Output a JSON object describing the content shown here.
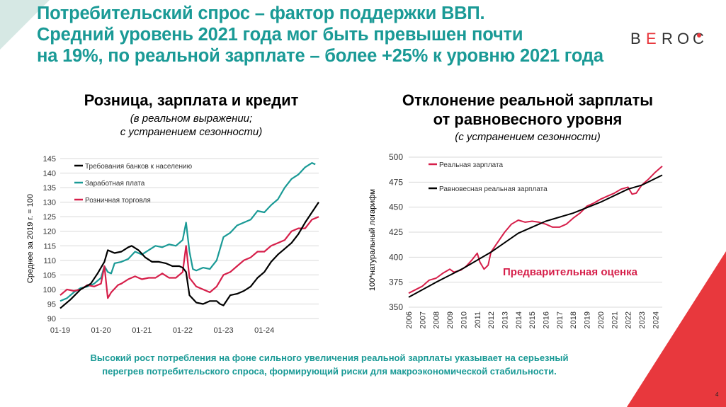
{
  "header": {
    "title_lines": [
      "Потребительский спрос – фактор поддержки ВВП.",
      "Средний уровень 2021 года мог быть превышен почти",
      "на 19%, по реальной зарплате – более +25% к уровню 2021 года"
    ],
    "logo": {
      "letters": [
        "B",
        "E",
        "R",
        "O",
        "C"
      ]
    }
  },
  "colors": {
    "teal": "#1a9a96",
    "red": "#d61f4a",
    "black": "#000000",
    "accent": "#e8383d"
  },
  "chart_left": {
    "title": "Розница, зарплата и кредит",
    "subtitle_lines": [
      "(в реальном выражении;",
      "с устранением сезонности)"
    ],
    "ylabel": "Среднее за 2019 г. = 100",
    "y_ticks": [
      90,
      95,
      100,
      105,
      110,
      115,
      120,
      125,
      130,
      135,
      140,
      145
    ],
    "x_tick_labels": [
      "01-19",
      "01-20",
      "01-21",
      "01-22",
      "01-23",
      "01-24"
    ]
  },
  "chart_right": {
    "title_lines": [
      "Отклонение реальной зарплаты",
      "от равновесного уровня"
    ],
    "subtitle": "(с устранением сезонности)",
    "ylabel": "100*натуральный логарифм",
    "y_ticks": [
      350,
      375,
      400,
      425,
      450,
      475,
      500
    ],
    "x_tick_labels": [
      "2006",
      "2007",
      "2008",
      "2009",
      "2010",
      "2011",
      "2012",
      "2013",
      "2014",
      "2015",
      "2016",
      "2017",
      "2018",
      "2019",
      "2020",
      "2021",
      "2022",
      "2023",
      "2024"
    ],
    "annotation": "Предварительная оценка"
  },
  "chart_data": [
    {
      "type": "line",
      "x_unit": "months since 01-19",
      "ylim": [
        90,
        145
      ],
      "legend_position": "top-left",
      "series": [
        {
          "name": "Требования банков к населению",
          "color": "#000000",
          "points": [
            [
              0,
              93.5
            ],
            [
              3,
              96.5
            ],
            [
              6,
              100
            ],
            [
              9,
              102
            ],
            [
              11,
              105.5
            ],
            [
              13,
              109.5
            ],
            [
              14,
              113.5
            ],
            [
              15,
              113
            ],
            [
              16,
              112.5
            ],
            [
              18,
              113
            ],
            [
              20,
              114.5
            ],
            [
              21,
              115
            ],
            [
              23,
              113.5
            ],
            [
              25,
              111
            ],
            [
              27,
              109.5
            ],
            [
              29,
              109.5
            ],
            [
              31,
              109
            ],
            [
              33,
              108
            ],
            [
              35,
              108
            ],
            [
              36,
              107.5
            ],
            [
              37,
              106
            ],
            [
              38,
              98
            ],
            [
              40,
              95.5
            ],
            [
              42,
              95
            ],
            [
              44,
              96
            ],
            [
              46,
              96
            ],
            [
              47,
              95
            ],
            [
              48,
              94.5
            ],
            [
              50,
              98
            ],
            [
              52,
              98.5
            ],
            [
              54,
              99.5
            ],
            [
              56,
              101
            ],
            [
              58,
              104
            ],
            [
              60,
              106
            ],
            [
              62,
              109.5
            ],
            [
              64,
              112
            ],
            [
              66,
              114
            ],
            [
              68,
              116
            ],
            [
              70,
              119
            ],
            [
              72,
              123
            ],
            [
              74,
              126.5
            ],
            [
              76,
              130
            ]
          ]
        },
        {
          "name": "Заработная плата",
          "color": "#1a9a96",
          "points": [
            [
              0,
              96
            ],
            [
              2,
              97
            ],
            [
              4,
              99
            ],
            [
              6,
              100.5
            ],
            [
              8,
              101
            ],
            [
              10,
              102
            ],
            [
              12,
              104
            ],
            [
              13,
              108
            ],
            [
              14,
              106
            ],
            [
              15,
              105.5
            ],
            [
              16,
              109
            ],
            [
              18,
              109.5
            ],
            [
              20,
              110.5
            ],
            [
              22,
              113
            ],
            [
              24,
              112
            ],
            [
              26,
              113.5
            ],
            [
              28,
              115
            ],
            [
              30,
              114.5
            ],
            [
              32,
              115.5
            ],
            [
              34,
              115
            ],
            [
              36,
              117
            ],
            [
              37,
              123
            ],
            [
              38,
              113
            ],
            [
              39,
              107
            ],
            [
              40,
              106.5
            ],
            [
              42,
              107.5
            ],
            [
              44,
              107
            ],
            [
              46,
              110
            ],
            [
              48,
              118
            ],
            [
              50,
              119.5
            ],
            [
              52,
              122
            ],
            [
              54,
              123
            ],
            [
              56,
              124
            ],
            [
              58,
              127
            ],
            [
              60,
              126.5
            ],
            [
              62,
              129
            ],
            [
              64,
              131
            ],
            [
              66,
              135
            ],
            [
              68,
              138
            ],
            [
              70,
              139.5
            ],
            [
              72,
              142
            ],
            [
              74,
              143.5
            ],
            [
              75,
              143
            ]
          ]
        },
        {
          "name": "Розничная торговля",
          "color": "#d61f4a",
          "points": [
            [
              0,
              98
            ],
            [
              2,
              100
            ],
            [
              4,
              99.5
            ],
            [
              6,
              100
            ],
            [
              8,
              101.5
            ],
            [
              10,
              101
            ],
            [
              12,
              102
            ],
            [
              13,
              108
            ],
            [
              14,
              97
            ],
            [
              15,
              99
            ],
            [
              17,
              101.5
            ],
            [
              18,
              102
            ],
            [
              20,
              103.5
            ],
            [
              22,
              104.5
            ],
            [
              24,
              103.5
            ],
            [
              26,
              104
            ],
            [
              28,
              104
            ],
            [
              30,
              105.5
            ],
            [
              32,
              104
            ],
            [
              34,
              104
            ],
            [
              36,
              106
            ],
            [
              37,
              115
            ],
            [
              38,
              104
            ],
            [
              40,
              101
            ],
            [
              42,
              100
            ],
            [
              44,
              99
            ],
            [
              46,
              101
            ],
            [
              48,
              105
            ],
            [
              50,
              106
            ],
            [
              52,
              108
            ],
            [
              54,
              110
            ],
            [
              56,
              111
            ],
            [
              58,
              113
            ],
            [
              60,
              113
            ],
            [
              62,
              115
            ],
            [
              64,
              116
            ],
            [
              66,
              117
            ],
            [
              68,
              120
            ],
            [
              70,
              121
            ],
            [
              72,
              121
            ],
            [
              74,
              124
            ],
            [
              76,
              125
            ]
          ]
        }
      ]
    },
    {
      "type": "line",
      "ylim": [
        350,
        500
      ],
      "legend_position": "top-left",
      "series": [
        {
          "name": "Реальная зарплата",
          "color": "#d61f4a",
          "points": [
            [
              2006,
              364
            ],
            [
              2007,
              371
            ],
            [
              2007.5,
              377
            ],
            [
              2008,
              379
            ],
            [
              2008.5,
              384
            ],
            [
              2009,
              388
            ],
            [
              2009.3,
              385
            ],
            [
              2009.8,
              387
            ],
            [
              2010.2,
              391
            ],
            [
              2010.6,
              397
            ],
            [
              2011,
              404
            ],
            [
              2011.2,
              395
            ],
            [
              2011.5,
              388
            ],
            [
              2011.8,
              392
            ],
            [
              2012,
              405
            ],
            [
              2012.5,
              415
            ],
            [
              2013,
              425
            ],
            [
              2013.5,
              433
            ],
            [
              2014,
              437
            ],
            [
              2014.5,
              435
            ],
            [
              2015,
              436
            ],
            [
              2015.5,
              435
            ],
            [
              2016,
              433
            ],
            [
              2016.5,
              430
            ],
            [
              2017,
              430
            ],
            [
              2017.5,
              433
            ],
            [
              2018,
              439
            ],
            [
              2018.5,
              444
            ],
            [
              2019,
              451
            ],
            [
              2019.5,
              454
            ],
            [
              2020,
              458
            ],
            [
              2020.5,
              461
            ],
            [
              2021,
              464
            ],
            [
              2021.5,
              468
            ],
            [
              2022,
              470
            ],
            [
              2022.3,
              463
            ],
            [
              2022.6,
              464
            ],
            [
              2023,
              472
            ],
            [
              2023.5,
              478
            ],
            [
              2024,
              485
            ],
            [
              2024.5,
              491
            ]
          ]
        },
        {
          "name": "Равновесная реальная зарплата",
          "color": "#000000",
          "points": [
            [
              2006,
              360
            ],
            [
              2008,
              375
            ],
            [
              2010,
              389
            ],
            [
              2012,
              405
            ],
            [
              2014,
              424
            ],
            [
              2016,
              436
            ],
            [
              2018,
              444
            ],
            [
              2020,
              455
            ],
            [
              2022,
              468
            ],
            [
              2023,
              472
            ],
            [
              2024.5,
              482
            ]
          ]
        }
      ]
    }
  ],
  "conclusion": {
    "lines": [
      "Высокий рост потребления на фоне сильного увеличения реальной зарплаты указывает на серьезный",
      "перегрев потребительского спроса, формирующий риски для макроэкономической стабильности."
    ]
  },
  "page_number": "4"
}
